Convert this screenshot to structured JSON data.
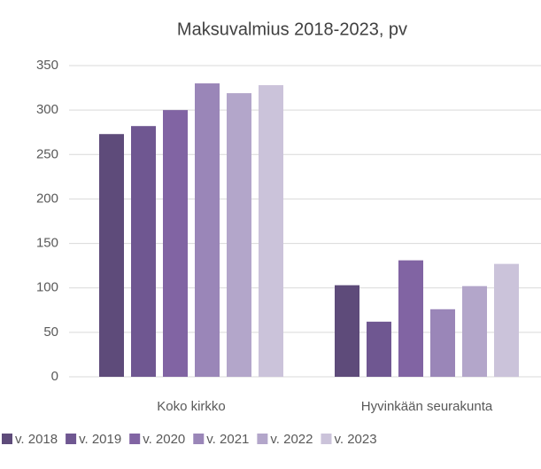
{
  "chart_data": {
    "type": "bar",
    "title": "Maksuvalmius 2018-2023, pv",
    "categories": [
      "Koko kirkko",
      "Hyvinkään seurakunta"
    ],
    "series": [
      {
        "name": "v. 2018",
        "color": "#5e4b7a",
        "values": [
          273,
          103
        ]
      },
      {
        "name": "v. 2019",
        "color": "#6f5791",
        "values": [
          282,
          62
        ]
      },
      {
        "name": "v. 2020",
        "color": "#8164a3",
        "values": [
          300,
          131
        ]
      },
      {
        "name": "v. 2021",
        "color": "#9a86b8",
        "values": [
          330,
          76
        ]
      },
      {
        "name": "v. 2022",
        "color": "#b3a6ca",
        "values": [
          319,
          102
        ]
      },
      {
        "name": "v. 2023",
        "color": "#cbc3da",
        "values": [
          328,
          127
        ]
      }
    ],
    "ylim": [
      0,
      350
    ],
    "yticks": [
      0,
      50,
      100,
      150,
      200,
      250,
      300,
      350
    ],
    "grid": true,
    "legend": "bottom"
  }
}
